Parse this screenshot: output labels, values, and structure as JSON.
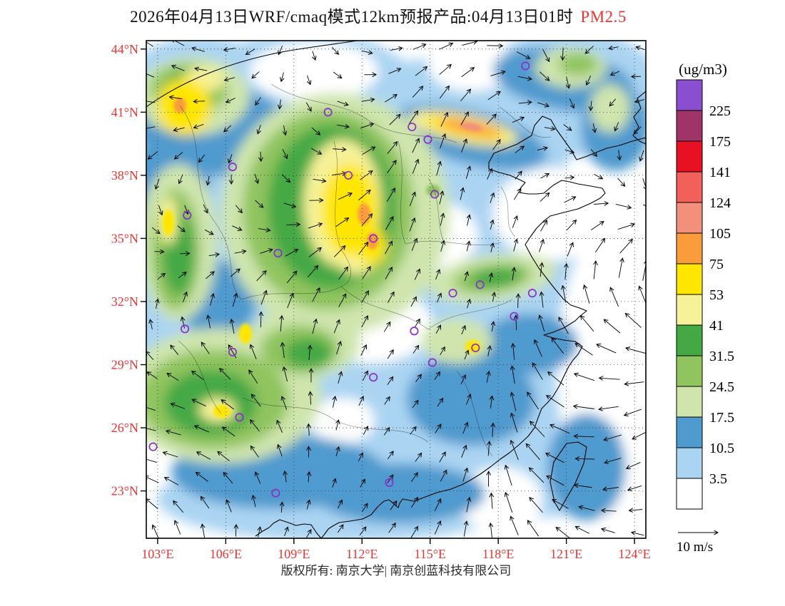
{
  "title": {
    "main": "2026年04月13日WRF/cmaq模式12km预报产品:04月13日01时",
    "pollutant": "PM2.5"
  },
  "footer": {
    "copyright": "版权所有: 南京大学| 南京创蓝科技有限公司"
  },
  "colors": {
    "axis_label": "#ee3333",
    "title_highlight": "#ee3333",
    "station_marker": "#8b2fc9",
    "frame": "#000000"
  },
  "chart_data": {
    "type": "heatmap",
    "title": "2026年04月13日WRF/cmaq模式12km预报产品:04月13日01时 PM2.5",
    "units_label": "(ug/m3)",
    "meta": {
      "model": "WRF/cmaq",
      "resolution": "12km",
      "forecast_date": "2026年04月13日",
      "valid_time": "04月13日01时",
      "pollutant": "PM2.5"
    },
    "lat_ticks": [
      "44°N",
      "41°N",
      "38°N",
      "35°N",
      "32°N",
      "29°N",
      "26°N",
      "23°N"
    ],
    "lon_ticks": [
      "103°E",
      "106°E",
      "109°E",
      "112°E",
      "115°E",
      "118°E",
      "121°E",
      "124°E"
    ],
    "lon_range": [
      102.5,
      124.5
    ],
    "lat_range": [
      20.75,
      44.4
    ],
    "grid": "dotted",
    "colorbar": {
      "boundaries": [
        225,
        175,
        141,
        124,
        105,
        75,
        53,
        41,
        31.5,
        24.5,
        17.5,
        10.5,
        3.5
      ],
      "colors_top_to_bottom": [
        "#8a4fd0",
        "#a03468",
        "#e81123",
        "#f2605a",
        "#f2907c",
        "#fa9c3c",
        "#ffe600",
        "#f6f29a",
        "#44a944",
        "#90c45e",
        "#cfe5ad",
        "#4f9ace",
        "#aad4f2",
        "#ffffff"
      ]
    },
    "wind_reference": {
      "label": "10 m/s",
      "speed_ms": 10
    },
    "stations_lon_lat": [
      [
        119.2,
        43.2
      ],
      [
        110.5,
        41.0
      ],
      [
        114.2,
        40.3
      ],
      [
        114.9,
        39.7
      ],
      [
        106.3,
        38.4
      ],
      [
        111.4,
        38.0
      ],
      [
        115.2,
        37.1
      ],
      [
        104.3,
        36.1
      ],
      [
        112.5,
        35.0
      ],
      [
        108.3,
        34.3
      ],
      [
        117.2,
        32.8
      ],
      [
        116.0,
        32.4
      ],
      [
        119.5,
        32.4
      ],
      [
        118.7,
        31.3
      ],
      [
        104.2,
        30.7
      ],
      [
        114.3,
        30.6
      ],
      [
        106.3,
        29.6
      ],
      [
        117.0,
        29.8
      ],
      [
        115.1,
        29.1
      ],
      [
        112.5,
        28.4
      ],
      [
        106.6,
        26.5
      ],
      [
        102.8,
        25.1
      ],
      [
        108.2,
        22.9
      ],
      [
        113.2,
        23.4
      ]
    ],
    "field_summary": [
      {
        "region": "North China band (~113-118E, 40-41.5N)",
        "approx_level_ugm3": "75-105 (orange)"
      },
      {
        "region": "Shanxi-Shaanxi-Henan core (~110-113E, 34-38N)",
        "approx_level_ugm3": "53-105 (yellow/orange)"
      },
      {
        "region": "NW corner patch (~103-106E, 41-43N)",
        "approx_level_ugm3": "41-75 (yellow/green)"
      },
      {
        "region": "Central China surround",
        "approx_level_ugm3": "17.5-41 (greens)"
      },
      {
        "region": "Sichuan-Chongqing-Guizhou-Yunnan (~103-108E, 24-30N)",
        "approx_level_ugm3": "24.5-75 (green, yellow spots)"
      },
      {
        "region": "South and southeast China",
        "approx_level_ugm3": "3.5-17.5 (blues)"
      },
      {
        "region": "Eastern seas",
        "approx_level_ugm3": "<10.5 (white/light blue)"
      }
    ]
  }
}
